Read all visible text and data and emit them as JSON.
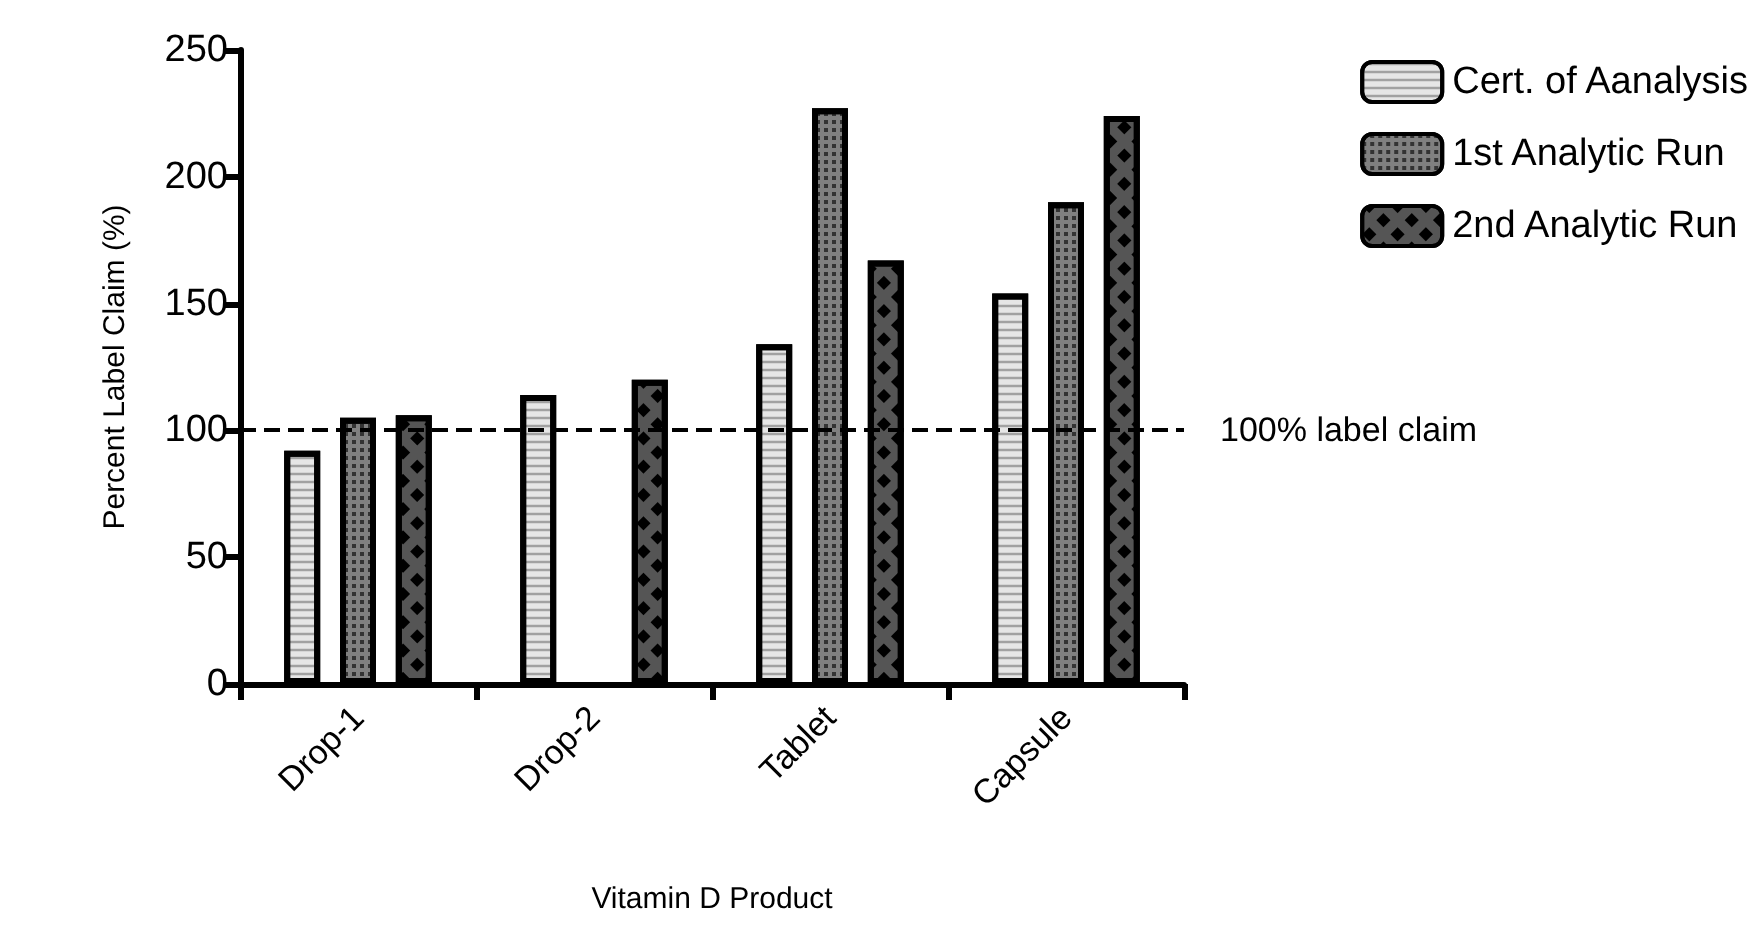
{
  "chart_data": {
    "type": "bar",
    "xlabel": "Vitamin D Product",
    "ylabel": "Percent Label Claim (%)",
    "categories": [
      "Drop-1",
      "Drop-2",
      "Tablet",
      "Capsule"
    ],
    "series": [
      {
        "name": "Cert. of Aanalysis",
        "color": "#e6e6e6",
        "values": [
          92,
          114,
          134,
          154
        ]
      },
      {
        "name": "1st Analytic Run",
        "color": "#808080",
        "values": [
          105,
          null,
          227,
          190
        ]
      },
      {
        "name": "2nd Analytic Run",
        "color": "#555555",
        "values": [
          106,
          120,
          167,
          224
        ]
      }
    ],
    "ylim": [
      0,
      250
    ],
    "yticks": [
      0,
      50,
      100,
      150,
      200,
      250
    ],
    "grid": false,
    "legend": "top right",
    "ref_lines": [
      {
        "axis": "y",
        "value": 100,
        "label": "100% label claim",
        "line_style": "dashed",
        "color": "#000000"
      }
    ]
  }
}
